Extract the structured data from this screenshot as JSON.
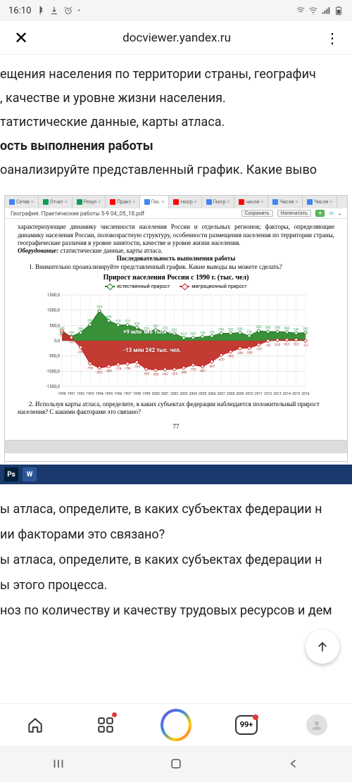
{
  "status": {
    "time": "16:10"
  },
  "browser": {
    "url": "docviewer.yandex.ru"
  },
  "doc_top": {
    "line1": "ещения населения по территории страны, географич",
    "line2": ", качестве и уровне жизни населения.",
    "line3": "татистические данные, карты атласа.",
    "line4_bold": "ость выполнения работы",
    "line5": "оанализируйте представленный график. Какие выво"
  },
  "embed": {
    "tabs": [
      {
        "label": "Сетев",
        "color": "#4285f4"
      },
      {
        "label": "Отчет",
        "color": "#0f9d58"
      },
      {
        "label": "Резул",
        "color": "#0f9d58"
      },
      {
        "label": "Практ",
        "color": "#ff0000"
      },
      {
        "label": "Гео.",
        "color": "#4285f4",
        "active": true
      },
      {
        "label": "геогр",
        "color": "#ff0000"
      },
      {
        "label": "Геогр",
        "color": "#4285f4"
      },
      {
        "label": "числе",
        "color": "#ff0000"
      },
      {
        "label": "Числе",
        "color": "#4285f4"
      },
      {
        "label": "Числе",
        "color": "#4285f4"
      }
    ],
    "filename": "География. Практические работы 5-9 04_05_18.pdf",
    "btn_save": "Сохранить",
    "btn_print": "Напечатать",
    "page": {
      "p1": "характеризующие динамику численности населения России и отдельных регионов; факторы, определяющие динамику населения России, половозрастную структуру, особенности размещения населения по территории страны, географические различия в уровне занятости, качестве и уровне жизни населения.",
      "p2_label": "Оборудование:",
      "p2_rest": " статистические данные, карты атласа.",
      "p3_center": "Последовательность выполнения работы",
      "p4": "1. Внимательно проанализируйте представленный график. Какие выводы вы можете сделать?",
      "p5": "2. Используя карты атласа, определите, в каких субъектах федерации наблюдается положительный прирост населения? С какими факторами это связано?",
      "pagenum": "77"
    }
  },
  "chart": {
    "type": "area",
    "title": "Прирост населения России с 1990 г. (тыс. чел)",
    "legend": [
      {
        "label": "естественный прирост",
        "color": "#2a7a2a"
      },
      {
        "label": "миграционный прирост",
        "color": "#c62828"
      }
    ],
    "ylim": [
      -1500,
      1500
    ],
    "yticks": [
      1500,
      1000,
      500,
      0,
      -500,
      -1000,
      -1500
    ],
    "years": [
      1990,
      1991,
      1992,
      1993,
      1994,
      1995,
      1996,
      1997,
      1998,
      1999,
      2000,
      2001,
      2002,
      2003,
      2004,
      2005,
      2006,
      2007,
      2008,
      2009,
      2010,
      2011,
      2012,
      2013,
      2014,
      2015,
      2016
    ],
    "migration_values": [
      275,
      136,
      266,
      526,
      978,
      654,
      514,
      515,
      429,
      270,
      363,
      279,
      231,
      93,
      99,
      126,
      155,
      240,
      242,
      259,
      158,
      320,
      295,
      296,
      280,
      246,
      262
    ],
    "natural_values": [
      333,
      105,
      -220,
      -750,
      -893,
      -840,
      -778,
      -756,
      -705,
      -930,
      -959,
      -943,
      -935,
      -889,
      -793,
      -847,
      -687,
      -470,
      -362,
      -249,
      -240,
      -129,
      -4,
      24,
      30,
      32,
      -2
    ],
    "top_labels": [
      "275",
      "136",
      "266",
      "526",
      "978",
      "654",
      "514",
      "515",
      "429",
      "270",
      "363",
      "279",
      "231",
      "93,0",
      "99,0",
      "126",
      "155",
      "240",
      "242",
      "259",
      "158",
      "320",
      "295",
      "296",
      "280",
      "246",
      "262"
    ],
    "bot_labels": [
      "333",
      "105",
      "-220",
      "-750",
      "-893",
      "-840",
      "-778",
      "-756",
      "-705",
      "-930",
      "-959",
      "-943",
      "-935",
      "-889",
      "-793",
      "-847",
      "-687",
      "-470",
      "-362",
      "-249",
      "-240",
      "-129",
      "-4,0",
      "24,0",
      "30,3",
      "32,0",
      "-2,3"
    ],
    "callout_top": "+9 млн 148 тыс. чел.",
    "callout_bot": "-13 млн 242 тыс. чел.",
    "bg": "#ffffff",
    "grid_color": "#d0d0d0",
    "green_fill": "#2e8b2e",
    "red_fill": "#c03028",
    "marker_stroke": "#555",
    "axis_fontsize": 6
  },
  "doc_bottom": {
    "line1": "ы атласа, определите, в каких субъектах федерации н",
    "line2": "ии факторами это связано?",
    "line3": "ы атласа, определите, в каких субъектах федерации н",
    "line4": "ы этого процесса.",
    "line5": "ноз по количеству и качеству трудовых ресурсов и дем"
  },
  "bottomnav": {
    "tabs_count": "99+"
  }
}
